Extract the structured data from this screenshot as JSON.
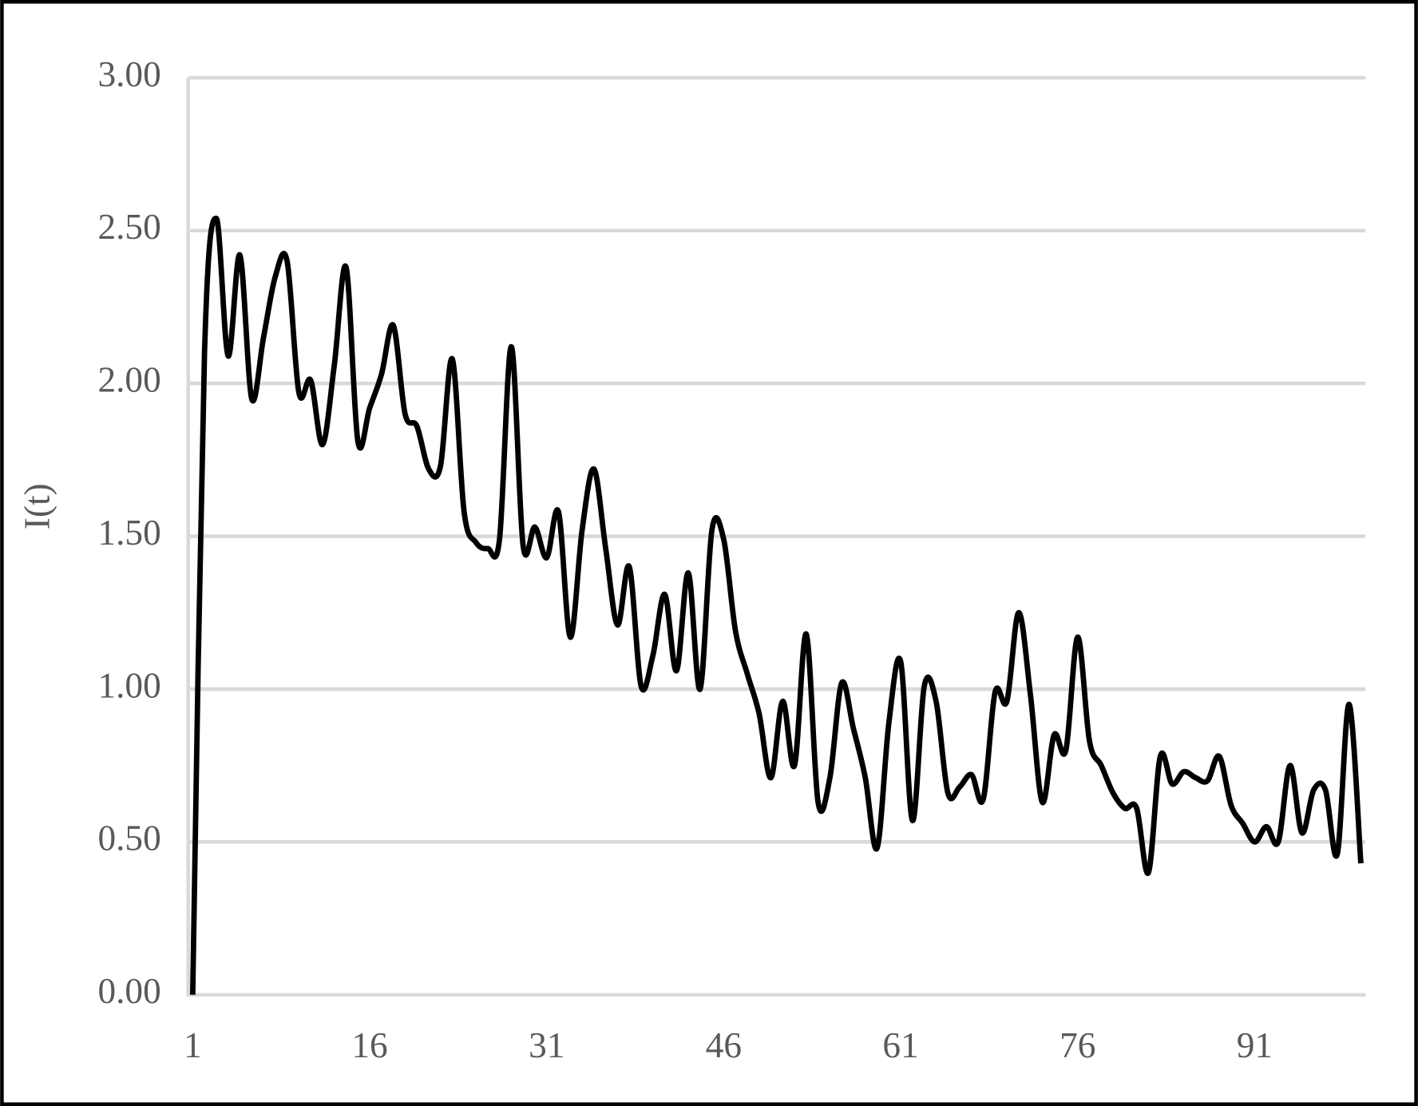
{
  "chart_data": {
    "type": "line",
    "y_label": "I(t)",
    "categories": [
      "1",
      null,
      null,
      null,
      null,
      null,
      null,
      null,
      null,
      null,
      null,
      null,
      null,
      null,
      null,
      "16",
      null,
      null,
      null,
      null,
      null,
      null,
      null,
      null,
      null,
      null,
      null,
      null,
      null,
      null,
      "31",
      null,
      null,
      null,
      null,
      null,
      null,
      null,
      null,
      null,
      null,
      null,
      null,
      null,
      null,
      "46",
      null,
      null,
      null,
      null,
      null,
      null,
      null,
      null,
      null,
      null,
      null,
      null,
      null,
      null,
      "61",
      null,
      null,
      null,
      null,
      null,
      null,
      null,
      null,
      null,
      null,
      null,
      null,
      null,
      null,
      "76",
      null,
      null,
      null,
      null,
      null,
      null,
      null,
      null,
      null,
      null,
      null,
      null,
      null,
      null,
      "91",
      null,
      null,
      null,
      null,
      null,
      null,
      null,
      null,
      null
    ],
    "series": [
      {
        "color": "#000000",
        "values": [
          0,
          2.1,
          2.54,
          2.09,
          2.42,
          1.95,
          2.15,
          2.35,
          2.4,
          1.97,
          2.01,
          1.8,
          2.06,
          2.38,
          1.81,
          1.92,
          2.03,
          2.19,
          1.9,
          1.86,
          1.72,
          1.73,
          2.08,
          1.58,
          1.48,
          1.46,
          1.49,
          2.12,
          1.47,
          1.53,
          1.43,
          1.58,
          1.17,
          1.52,
          1.72,
          1.46,
          1.21,
          1.4,
          1.01,
          1.11,
          1.31,
          1.06,
          1.38,
          1.0,
          1.52,
          1.49,
          1.19,
          1.05,
          0.92,
          0.71,
          0.96,
          0.75,
          1.18,
          0.63,
          0.71,
          1.02,
          0.87,
          0.71,
          0.48,
          0.89,
          1.09,
          0.57,
          1.01,
          0.96,
          0.66,
          0.68,
          0.72,
          0.64,
          0.99,
          0.96,
          1.25,
          0.98,
          0.63,
          0.85,
          0.8,
          1.17,
          0.83,
          0.75,
          0.66,
          0.61,
          0.61,
          0.4,
          0.78,
          0.69,
          0.73,
          0.71,
          0.7,
          0.78,
          0.62,
          0.56,
          0.5,
          0.55,
          0.5,
          0.75,
          0.53,
          0.67,
          0.67,
          0.46,
          0.95,
          0.43
        ]
      }
    ],
    "ylim": [
      0,
      3
    ],
    "yticks": [
      {
        "value": 0,
        "label": "0.00"
      },
      {
        "value": 0.5,
        "label": "0.50"
      },
      {
        "value": 1,
        "label": "1.00"
      },
      {
        "value": 1.5,
        "label": "1.50"
      },
      {
        "value": 2,
        "label": "2.00"
      },
      {
        "value": 2.5,
        "label": "2.50"
      },
      {
        "value": 3,
        "label": "3.00"
      }
    ],
    "grid": true
  }
}
